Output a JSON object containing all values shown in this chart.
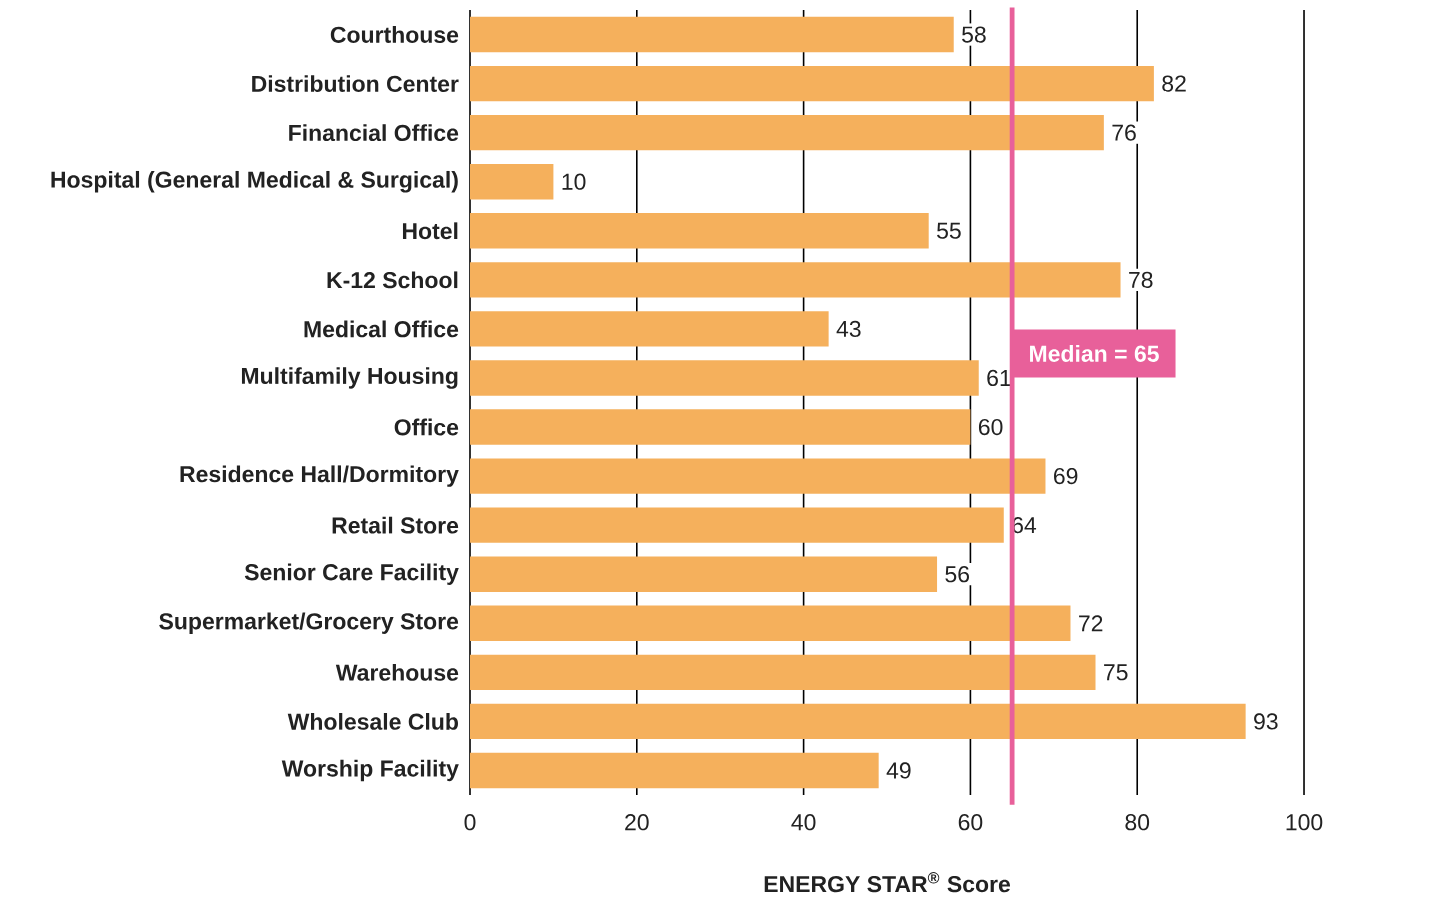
{
  "chart_data": {
    "type": "bar",
    "orientation": "horizontal",
    "categories": [
      "Courthouse",
      "Distribution Center",
      "Financial Office",
      "Hospital (General Medical & Surgical)",
      "Hotel",
      "K-12 School",
      "Medical Office",
      "Multifamily Housing",
      "Office",
      "Residence Hall/Dormitory",
      "Retail Store",
      "Senior Care Facility",
      "Supermarket/Grocery Store",
      "Warehouse",
      "Wholesale Club",
      "Worship Facility"
    ],
    "values": [
      58,
      82,
      76,
      10,
      55,
      78,
      43,
      61,
      60,
      69,
      64,
      56,
      72,
      75,
      93,
      49
    ],
    "color": "#f5b05c",
    "xlabel": "ENERGY STAR$^{®}$ Score",
    "xlim": [
      0,
      100
    ],
    "xticks": [
      0,
      20,
      40,
      60,
      80,
      100
    ],
    "grid": "x",
    "data_labels": true,
    "ref_lines": [
      {
        "axis": "x",
        "value": 65,
        "label": "Median = 65",
        "color": "#e8609a"
      }
    ]
  }
}
